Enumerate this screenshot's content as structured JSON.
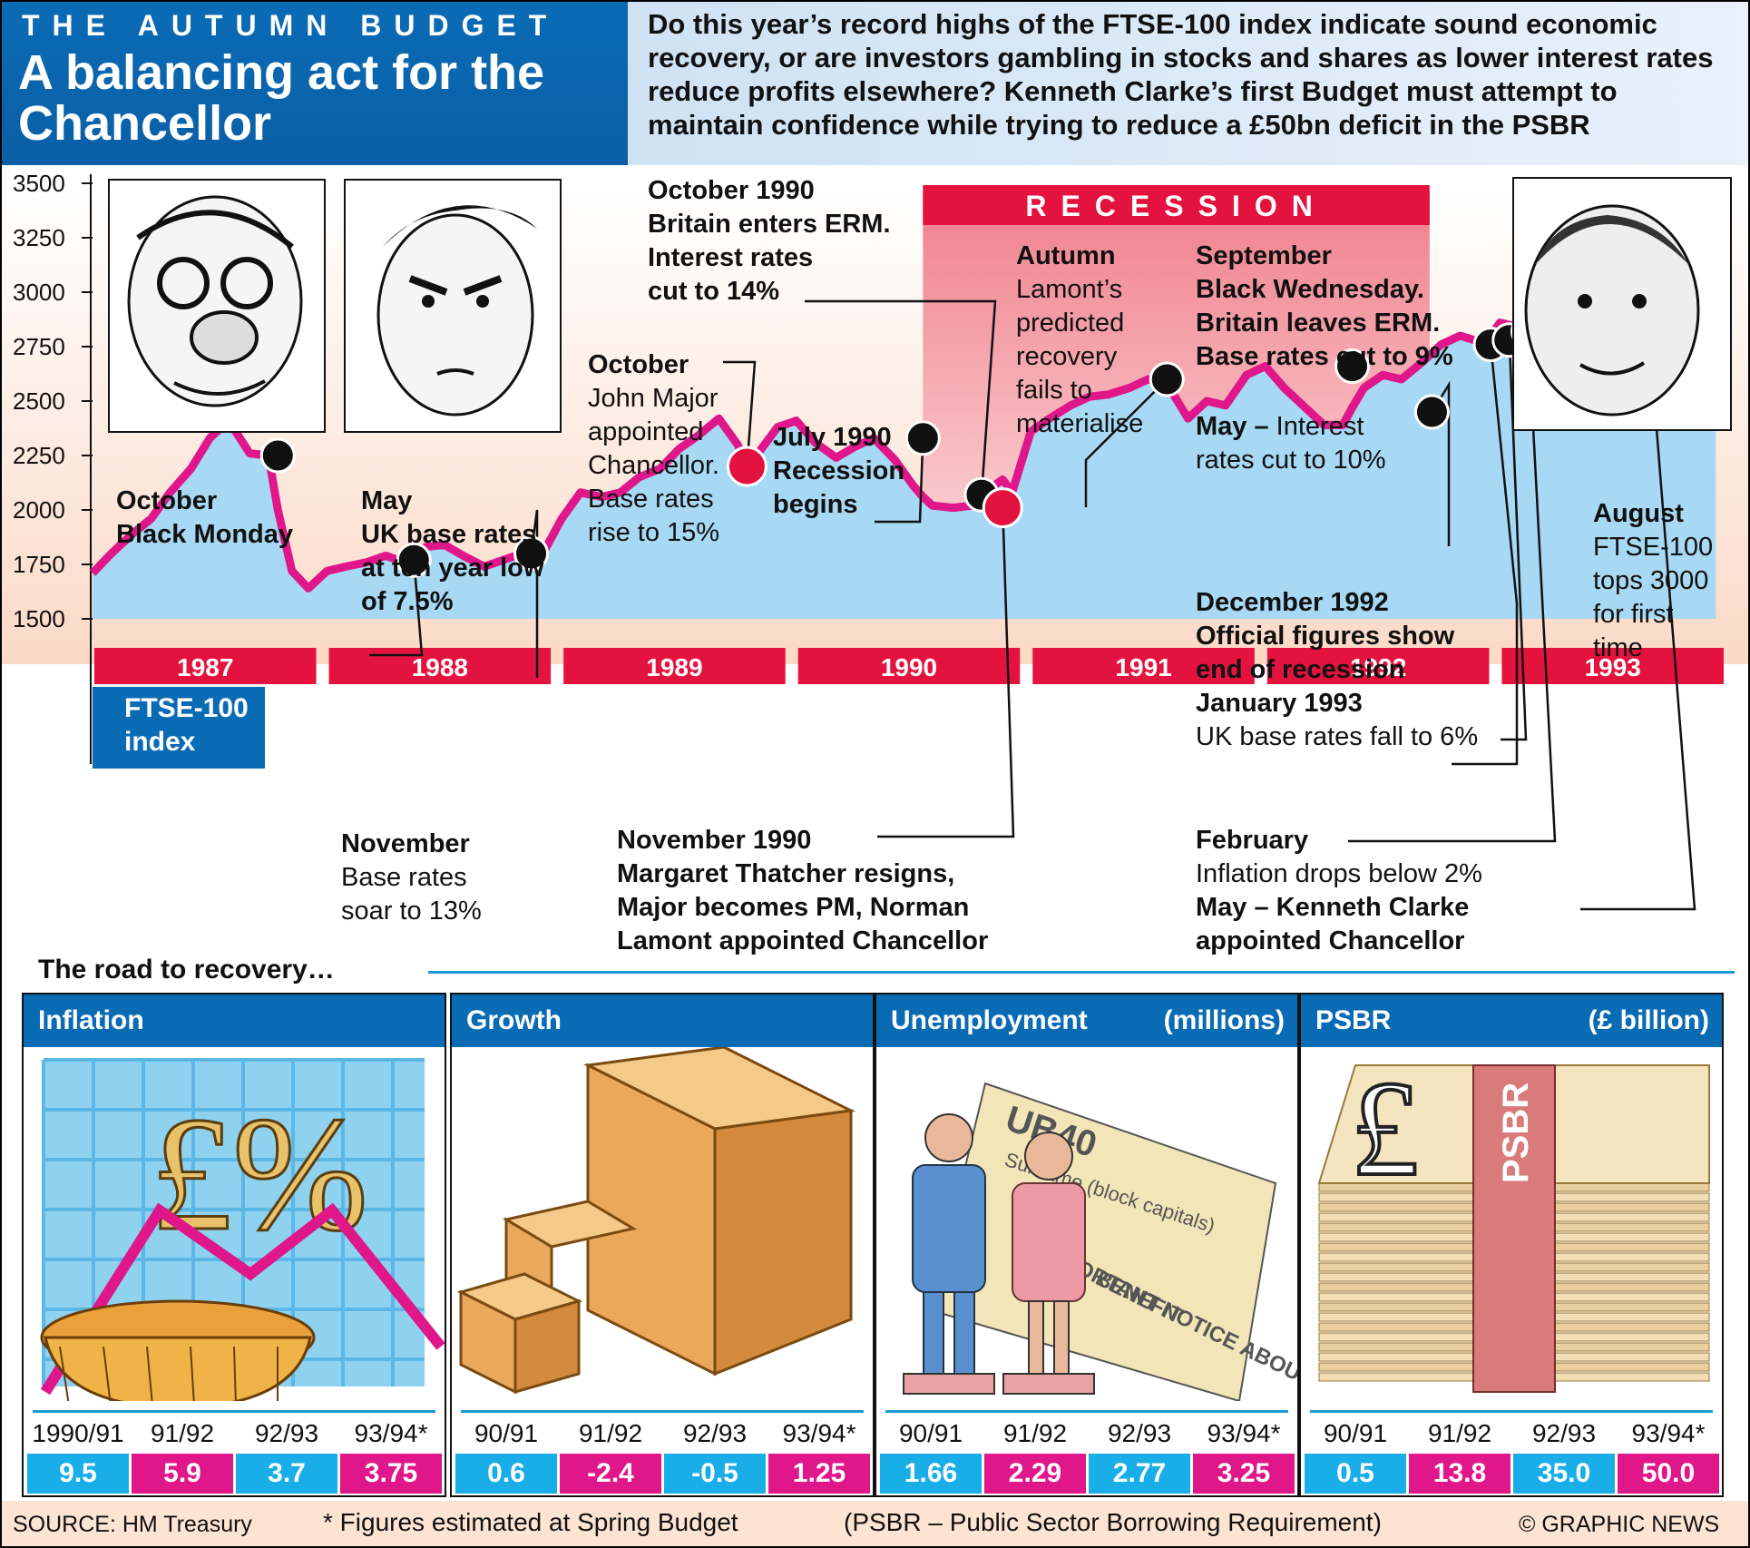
{
  "header": {
    "kicker": "THE AUTUMN BUDGET",
    "title": "A balancing act for the Chancellor",
    "intro": "Do this year’s record highs of the FTSE-100 index indicate sound economic recovery, or are investors gambling in stocks and shares as lower interest rates reduce profits elsewhere? Kenneth Clarke’s first Budget must attempt to maintain confidence while trying to reduce a £50bn deficit in the PSBR"
  },
  "chart_data": [
    {
      "type": "area",
      "series": [
        {
          "name": "FTSE-100 index",
          "x": [
            1987.0,
            1987.08,
            1987.17,
            1987.25,
            1987.33,
            1987.42,
            1987.5,
            1987.58,
            1987.67,
            1987.75,
            1987.79,
            1987.85,
            1987.92,
            1988.0,
            1988.08,
            1988.17,
            1988.25,
            1988.33,
            1988.42,
            1988.5,
            1988.58,
            1988.67,
            1988.75,
            1988.83,
            1988.92,
            1989.0,
            1989.08,
            1989.17,
            1989.25,
            1989.33,
            1989.42,
            1989.5,
            1989.58,
            1989.67,
            1989.75,
            1989.79,
            1989.83,
            1989.92,
            1990.0,
            1990.08,
            1990.17,
            1990.25,
            1990.33,
            1990.42,
            1990.5,
            1990.54,
            1990.58,
            1990.67,
            1990.75,
            1990.83,
            1990.88,
            1990.92,
            1991.0,
            1991.08,
            1991.17,
            1991.25,
            1991.33,
            1991.42,
            1991.5,
            1991.58,
            1991.67,
            1991.75,
            1991.83,
            1991.92,
            1992.0,
            1992.08,
            1992.17,
            1992.25,
            1992.33,
            1992.37,
            1992.42,
            1992.5,
            1992.58,
            1992.67,
            1992.71,
            1992.75,
            1992.83,
            1992.92,
            1992.96,
            1993.0,
            1993.08,
            1993.12,
            1993.17,
            1993.25,
            1993.33,
            1993.42,
            1993.5,
            1993.58,
            1993.62,
            1993.67,
            1993.75,
            1993.83,
            1993.92
          ],
          "values": [
            1710,
            1800,
            1890,
            1960,
            2080,
            2190,
            2330,
            2410,
            2260,
            2250,
            2000,
            1720,
            1640,
            1720,
            1740,
            1760,
            1790,
            1760,
            1830,
            1840,
            1790,
            1740,
            1770,
            1800,
            1800,
            1960,
            2080,
            2060,
            2080,
            2150,
            2190,
            2280,
            2340,
            2420,
            2300,
            2200,
            2250,
            2380,
            2410,
            2310,
            2240,
            2290,
            2330,
            2230,
            2110,
            2060,
            2020,
            2010,
            2020,
            2100,
            2140,
            2080,
            2360,
            2420,
            2480,
            2520,
            2530,
            2560,
            2600,
            2580,
            2420,
            2500,
            2480,
            2620,
            2660,
            2560,
            2470,
            2390,
            2390,
            2470,
            2560,
            2620,
            2600,
            2680,
            2720,
            2760,
            2800,
            2770,
            2800,
            2860,
            2840,
            2820,
            2800,
            2860,
            2890,
            2930,
            2990,
            3020,
            2970,
            3020,
            3050,
            3080,
            3100
          ]
        }
      ],
      "ylim": [
        1500,
        3625
      ],
      "yticks": [
        1500,
        1750,
        2000,
        2250,
        2500,
        2750,
        3000,
        3250,
        3500
      ],
      "xlim": [
        1987.0,
        1994.0
      ],
      "categories": [
        "1987",
        "1988",
        "1989",
        "1990",
        "1991",
        "1992",
        "1993"
      ],
      "shaded_region": {
        "label": "RECESSION",
        "from": 1990.54,
        "to": 1992.7
      },
      "events": [
        {
          "x": 1987.79,
          "y": 2250,
          "style": "black",
          "heading": [
            "October",
            "Black Monday"
          ],
          "body": []
        },
        {
          "x": 1988.37,
          "y": 1770,
          "style": "black",
          "heading": [
            "May",
            "UK base rates",
            "at ten year low",
            "of 7.5%"
          ],
          "body": []
        },
        {
          "x": 1988.87,
          "y": 1800,
          "style": "black",
          "heading": [
            "November"
          ],
          "body": [
            "Base rates",
            "soar to 13%"
          ]
        },
        {
          "x": 1989.79,
          "y": 2200,
          "style": "red",
          "heading": [
            "October"
          ],
          "body": [
            "John Major",
            "appointed",
            "Chancellor.",
            "Base rates",
            "rise to 15%"
          ]
        },
        {
          "x": 1990.54,
          "y": 2330,
          "style": "black",
          "heading": [
            "July 1990",
            "Recession",
            "begins"
          ],
          "body": []
        },
        {
          "x": 1990.79,
          "y": 2070,
          "style": "black",
          "heading": [
            "October 1990",
            "Britain enters ERM.",
            "Interest rates",
            "cut to 14%"
          ],
          "body": []
        },
        {
          "x": 1990.88,
          "y": 2010,
          "style": "red",
          "heading": [
            "November 1990",
            "Margaret Thatcher resigns,",
            "Major becomes PM, Norman",
            "Lamont appointed Chancellor"
          ],
          "body": []
        },
        {
          "x": 1991.58,
          "y": 2600,
          "style": "black",
          "heading": [
            "Autumn"
          ],
          "body": [
            "Lamont’s",
            "predicted",
            "recovery",
            "fails to",
            "materialise"
          ]
        },
        {
          "x": 1992.37,
          "y": 2660,
          "style": "black",
          "heading": [],
          "body": [],
          "inline": {
            "bold": "May –",
            "rest": " Interest",
            "line2": "rates cut to 10%"
          }
        },
        {
          "x": 1992.71,
          "y": 2450,
          "style": "black",
          "heading": [
            "September",
            "Black Wednesday.",
            "Britain leaves ERM.",
            "Base rates cut to 9%"
          ],
          "body": []
        },
        {
          "x": 1992.96,
          "y": 2760,
          "style": "black",
          "heading": [
            "December 1992",
            "Official figures show",
            "end of recession",
            "January 1993"
          ],
          "body": [
            "UK base rates fall to 6%"
          ]
        },
        {
          "x": 1993.04,
          "y": 2780,
          "style": "black",
          "heading": [],
          "body": []
        },
        {
          "x": 1993.12,
          "y": 2820,
          "style": "black",
          "heading": [
            "February"
          ],
          "body": [
            "Inflation drops below 2%"
          ],
          "extra": [
            "May – Kenneth Clarke",
            "appointed Chancellor"
          ]
        },
        {
          "x": 1993.37,
          "y": 2840,
          "style": "red",
          "heading": [],
          "body": []
        },
        {
          "x": 1993.62,
          "y": 3020,
          "style": "black",
          "heading": [
            "August"
          ],
          "body": [
            "FTSE-100",
            "tops 3000",
            "for first",
            "time"
          ]
        }
      ],
      "index_label": [
        "FTSE-100",
        "index"
      ]
    },
    {
      "type": "table",
      "title": "The road to recovery…",
      "panels": [
        {
          "name": "Inflation",
          "unit": "",
          "periods": [
            "1990/91",
            "91/92",
            "92/93",
            "93/94*"
          ],
          "values": [
            "9.5",
            "5.9",
            "3.7",
            "3.75"
          ]
        },
        {
          "name": "Growth",
          "unit": "",
          "periods": [
            "90/91",
            "91/92",
            "92/93",
            "93/94*"
          ],
          "values": [
            "0.6",
            "-2.4",
            "-0.5",
            "1.25"
          ]
        },
        {
          "name": "Unemployment",
          "unit": "(millions)",
          "periods": [
            "90/91",
            "91/92",
            "92/93",
            "93/94*"
          ],
          "values": [
            "1.66",
            "2.29",
            "2.77",
            "3.25"
          ]
        },
        {
          "name": "PSBR",
          "unit": "(£ billion)",
          "periods": [
            "90/91",
            "91/92",
            "92/93",
            "93/94*"
          ],
          "values": [
            "0.5",
            "13.8",
            "35.0",
            "50.0"
          ]
        }
      ]
    }
  ],
  "art_text": {
    "inflation_symbols": "£%",
    "ub40_title": "UB40",
    "ub40_lines": [
      "Surname (block capitals)",
      "IMPORTANT NOTICE ABOUT",
      "BENEFIT"
    ],
    "psbr_band": "PSBR",
    "pound_sign": "£"
  },
  "footer": {
    "source": "SOURCE: HM Treasury",
    "note": "* Figures estimated at Spring Budget",
    "definition": "(PSBR – Public Sector Borrowing Requirement)",
    "credit": "© GRAPHIC NEWS"
  },
  "colors": {
    "brand_blue": "#0a6bb5",
    "line_magenta": "#e0168b",
    "area_blue": "#a7d8f4",
    "year_red": "#e4123f",
    "recession_pink": "#f5a8ac",
    "value_cyan": "#1aaee8"
  }
}
